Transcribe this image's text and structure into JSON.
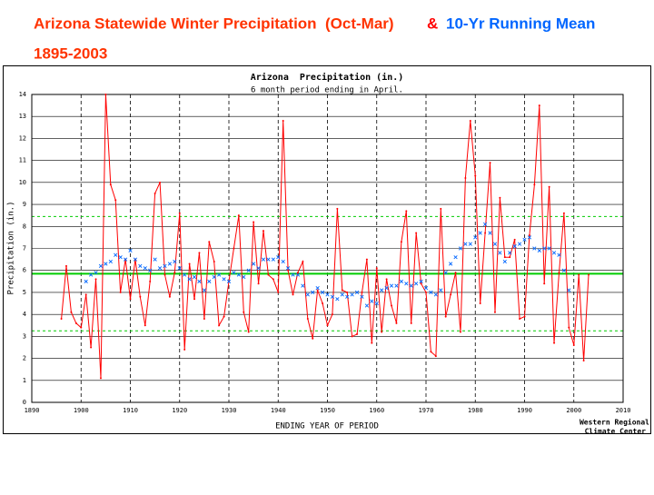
{
  "header": {
    "title": "Arizona Statewide Winter Precipitation  (Oct-Mar)",
    "title_color": "#ff3300",
    "amp": "&",
    "amp_color": "#ff0000",
    "years": "1895-2003",
    "years_color": "#ff3300"
  },
  "chart_data": {
    "type": "line",
    "title": "Arizona  Precipitation (in.)",
    "subtitle": "6 month period ending in April.",
    "xlabel": "ENDING YEAR OF PERIOD",
    "ylabel": "Precipitation (in.)",
    "credit": [
      "Western Regional",
      "Climate Center"
    ],
    "xlim": [
      1890,
      2010
    ],
    "ylim": [
      0,
      14
    ],
    "xticks": [
      1890,
      1900,
      1910,
      1920,
      1930,
      1940,
      1950,
      1960,
      1970,
      1980,
      1990,
      2000,
      2010
    ],
    "yticks": [
      0,
      1,
      2,
      3,
      4,
      5,
      6,
      7,
      8,
      9,
      10,
      11,
      12,
      13,
      14
    ],
    "grid": true,
    "hlines": [
      {
        "value": 8.45,
        "style": "dashed"
      },
      {
        "value": 5.85,
        "style": "solid"
      },
      {
        "value": 3.25,
        "style": "dashed"
      }
    ],
    "hline_color": "#00cc00",
    "x": [
      1896,
      1897,
      1898,
      1899,
      1900,
      1901,
      1902,
      1903,
      1904,
      1905,
      1906,
      1907,
      1908,
      1909,
      1910,
      1911,
      1912,
      1913,
      1914,
      1915,
      1916,
      1917,
      1918,
      1919,
      1920,
      1921,
      1922,
      1923,
      1924,
      1925,
      1926,
      1927,
      1928,
      1929,
      1930,
      1931,
      1932,
      1933,
      1934,
      1935,
      1936,
      1937,
      1938,
      1939,
      1940,
      1941,
      1942,
      1943,
      1944,
      1945,
      1946,
      1947,
      1948,
      1949,
      1950,
      1951,
      1952,
      1953,
      1954,
      1955,
      1956,
      1957,
      1958,
      1959,
      1960,
      1961,
      1962,
      1963,
      1964,
      1965,
      1966,
      1967,
      1968,
      1969,
      1970,
      1971,
      1972,
      1973,
      1974,
      1975,
      1976,
      1977,
      1978,
      1979,
      1980,
      1981,
      1982,
      1983,
      1984,
      1985,
      1986,
      1987,
      1988,
      1989,
      1990,
      1991,
      1992,
      1993,
      1994,
      1995,
      1996,
      1997,
      1998,
      1999,
      2000,
      2001,
      2002,
      2003
    ],
    "series": [
      {
        "color": "#ff0000",
        "marker": "dot",
        "values": [
          3.8,
          6.2,
          4.1,
          3.6,
          3.4,
          4.9,
          2.5,
          5.6,
          1.1,
          14.0,
          9.9,
          9.2,
          5.0,
          6.5,
          4.7,
          6.5,
          4.8,
          3.5,
          5.5,
          9.5,
          10.0,
          5.8,
          4.8,
          5.9,
          8.6,
          2.4,
          6.3,
          4.7,
          6.8,
          3.8,
          7.3,
          6.4,
          3.5,
          3.9,
          5.5,
          7.0,
          8.5,
          4.1,
          3.2,
          8.2,
          5.4,
          7.8,
          5.8,
          5.6,
          5.0,
          12.8,
          6.0,
          4.9,
          5.9,
          6.4,
          3.8,
          2.9,
          5.1,
          4.5,
          3.5,
          4.0,
          8.8,
          5.1,
          5.0,
          3.0,
          3.1,
          5.0,
          6.5,
          2.7,
          6.1,
          3.2,
          5.6,
          4.4,
          3.6,
          7.3,
          8.7,
          3.6,
          7.7,
          5.4,
          5.0,
          2.3,
          2.1,
          8.8,
          3.9,
          4.9,
          5.9,
          3.2,
          10.2,
          12.8,
          10.3,
          4.5,
          7.7,
          10.9,
          4.1,
          9.3,
          6.6,
          6.6,
          7.4,
          3.8,
          3.9,
          7.6,
          9.9,
          13.5,
          5.4,
          9.8,
          2.7,
          5.9,
          8.6,
          3.4,
          2.6,
          5.8,
          1.9,
          5.8
        ]
      },
      {
        "name": "10-Yr Running Mean",
        "color": "#0066ff",
        "marker": "x",
        "values": [
          null,
          null,
          null,
          null,
          null,
          5.5,
          5.8,
          5.9,
          6.2,
          6.3,
          6.4,
          6.7,
          6.6,
          6.5,
          6.9,
          6.5,
          6.2,
          6.1,
          6.0,
          6.5,
          6.1,
          6.2,
          6.3,
          6.4,
          6.1,
          5.8,
          5.6,
          5.7,
          5.5,
          5.1,
          5.5,
          5.7,
          5.8,
          5.6,
          5.5,
          5.9,
          5.8,
          5.7,
          6.0,
          6.3,
          6.1,
          6.5,
          6.5,
          6.5,
          6.6,
          6.4,
          6.1,
          5.8,
          5.8,
          5.3,
          4.9,
          5.0,
          5.2,
          5.0,
          4.9,
          4.8,
          4.7,
          4.9,
          4.8,
          4.9,
          5.0,
          4.8,
          4.4,
          4.6,
          4.5,
          5.1,
          5.2,
          5.3,
          5.3,
          5.5,
          5.4,
          5.3,
          5.4,
          5.5,
          5.2,
          5.0,
          4.9,
          5.1,
          5.9,
          6.3,
          6.6,
          7.0,
          7.2,
          7.2,
          7.5,
          7.7,
          8.1,
          7.7,
          7.2,
          6.8,
          6.4,
          6.8,
          7.1,
          7.2,
          7.4,
          7.5,
          7.0,
          6.9,
          7.0,
          7.0,
          6.8,
          6.7,
          6.0,
          5.1,
          null,
          null,
          null,
          null
        ]
      }
    ]
  }
}
